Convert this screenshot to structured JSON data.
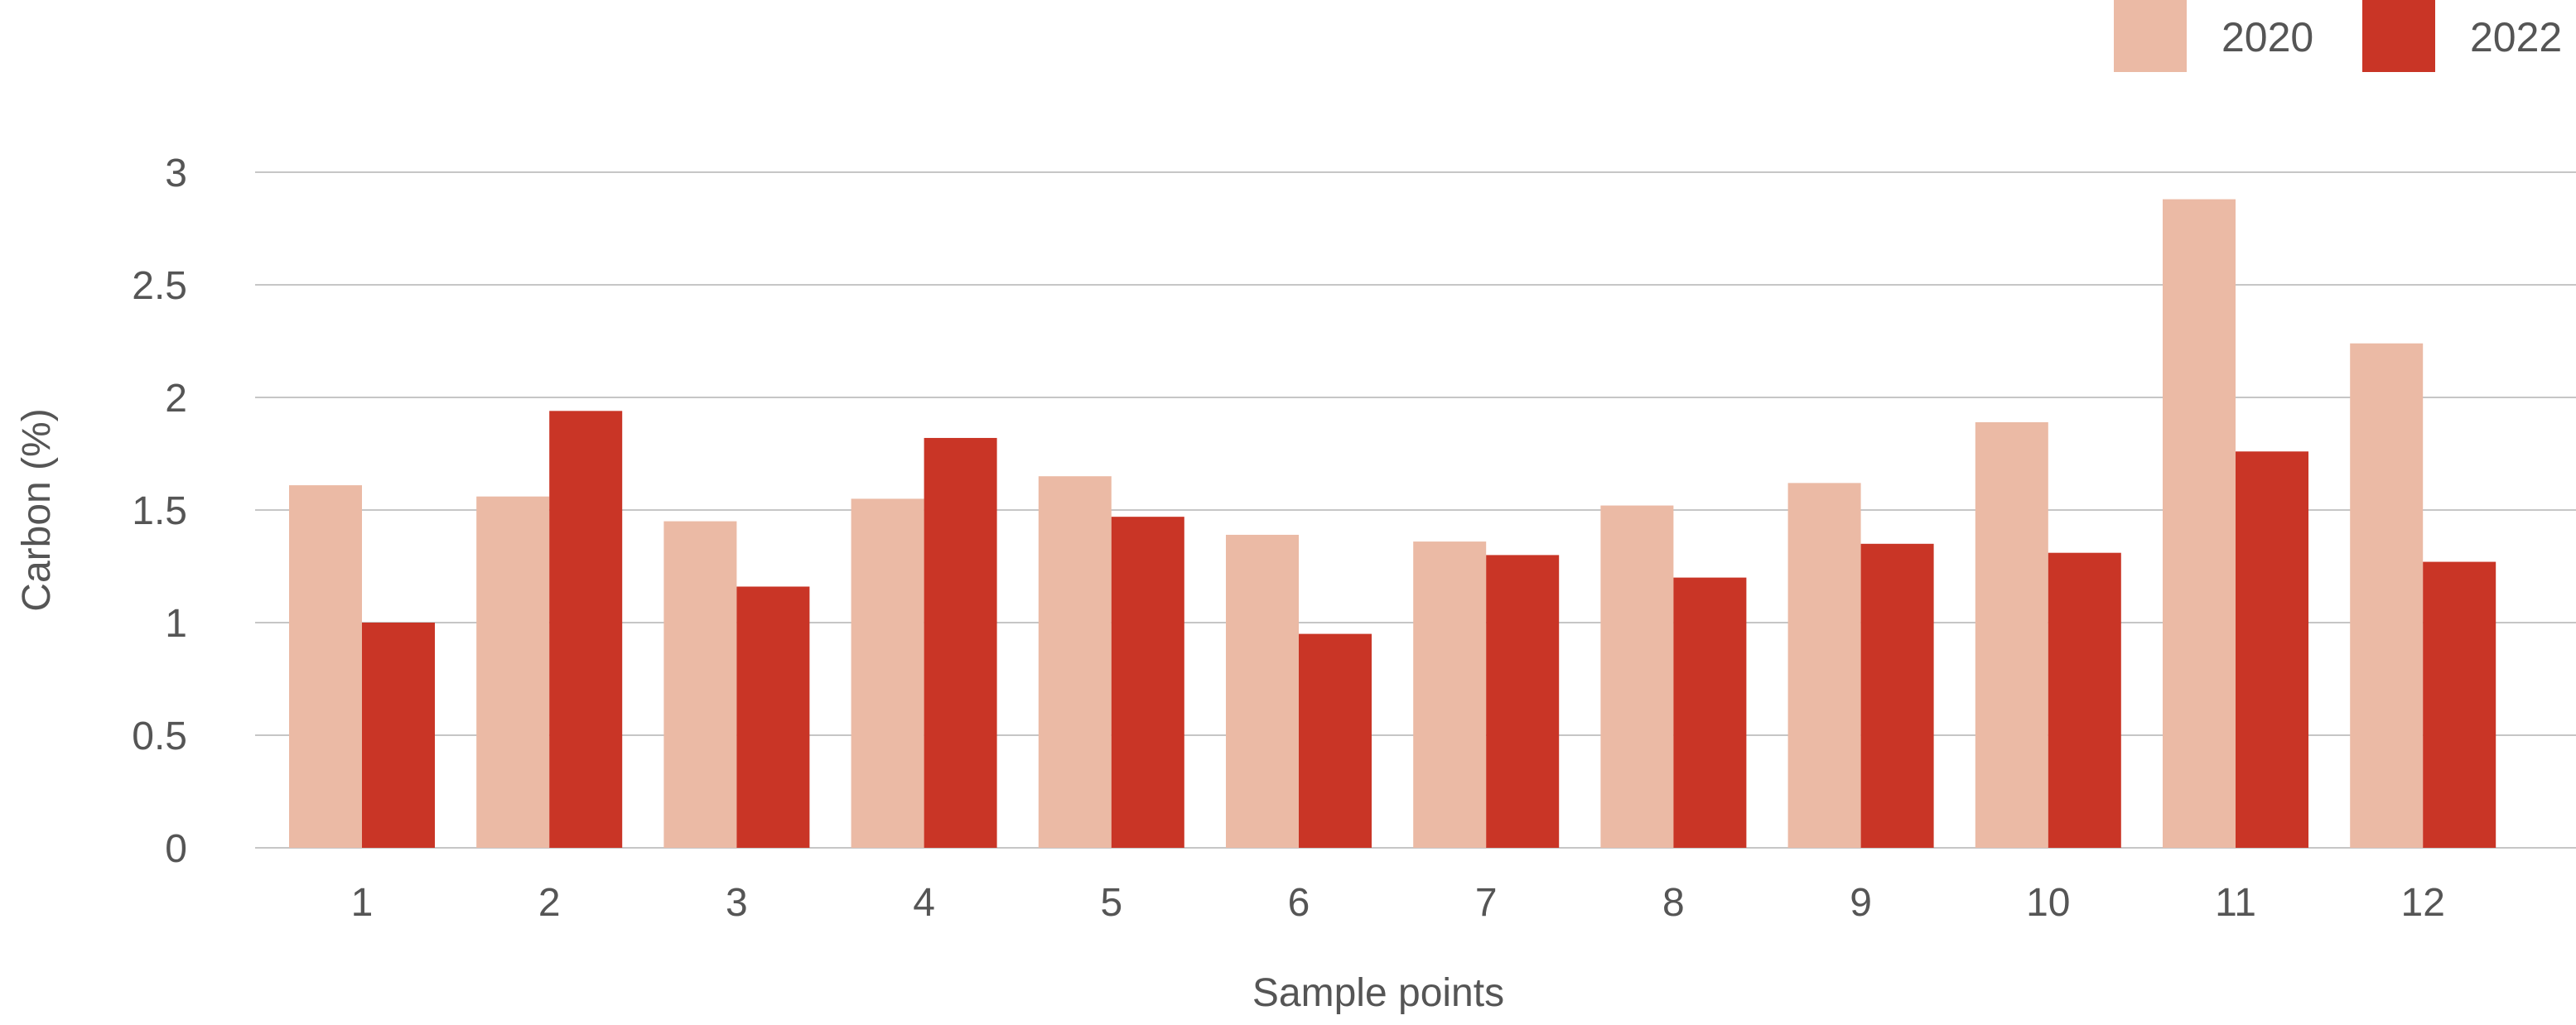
{
  "chart_data": {
    "type": "bar",
    "title": "",
    "xlabel": "Sample points",
    "ylabel": "Carbon (%)",
    "ylim": [
      0,
      3
    ],
    "yticks": [
      "0",
      "0.5",
      "1",
      "1.5",
      "2",
      "2.5",
      "3"
    ],
    "grid": true,
    "legend_position": "top-right",
    "categories": [
      "1",
      "2",
      "3",
      "4",
      "5",
      "6",
      "7",
      "8",
      "9",
      "10",
      "11",
      "12"
    ],
    "series": [
      {
        "name": "2020",
        "color": "#EBBAA5",
        "values": [
          1.61,
          1.56,
          1.45,
          1.55,
          1.65,
          1.39,
          1.36,
          1.52,
          1.62,
          1.89,
          2.88,
          2.24
        ]
      },
      {
        "name": "2022",
        "color": "#C93526",
        "values": [
          1.0,
          1.94,
          1.16,
          1.82,
          1.47,
          0.95,
          1.3,
          1.2,
          1.35,
          1.31,
          1.76,
          1.27
        ]
      }
    ]
  }
}
